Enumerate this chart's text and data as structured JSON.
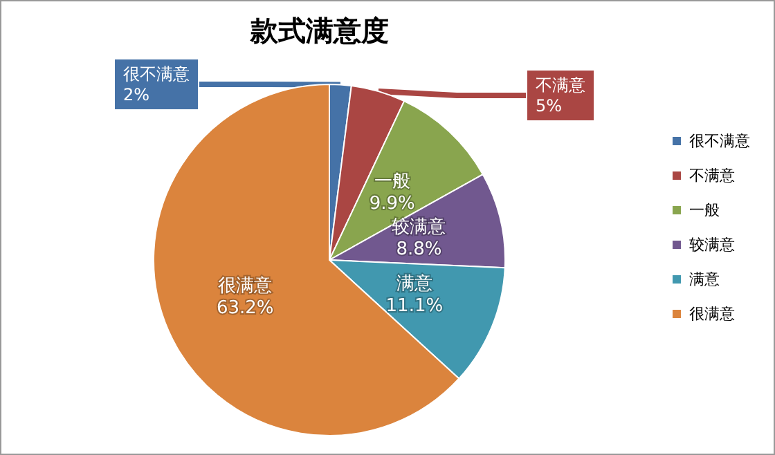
{
  "chart_data": {
    "type": "pie",
    "title": "款式满意度",
    "categories": [
      "很不满意",
      "不满意",
      "一般",
      "较满意",
      "满意",
      "很满意"
    ],
    "values": [
      2,
      5,
      9.9,
      8.8,
      11.1,
      63.2
    ],
    "value_labels": [
      "2%",
      "5%",
      "9.9%",
      "8.8%",
      "11.1%",
      "63.2%"
    ],
    "colors": [
      "#4572a7",
      "#aa4643",
      "#89a54e",
      "#71588f",
      "#4198af",
      "#db843d"
    ],
    "legend": "right"
  }
}
